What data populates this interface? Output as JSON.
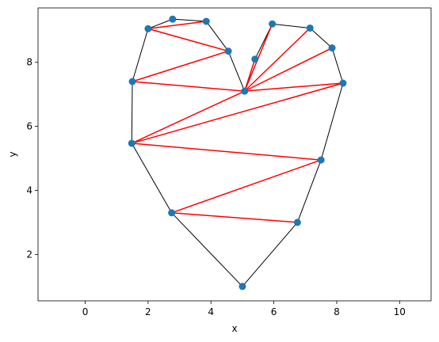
{
  "chart_data": {
    "type": "scatter",
    "title": "",
    "xlabel": "x",
    "ylabel": "y",
    "xlim": [
      -1.5,
      11.0
    ],
    "ylim": [
      0.55,
      9.7
    ],
    "xticks": [
      0,
      2,
      4,
      6,
      8,
      10
    ],
    "yticks": [
      2,
      4,
      6,
      8
    ],
    "grid": false,
    "points": [
      {
        "x": 5.0,
        "y": 1.0
      },
      {
        "x": 6.75,
        "y": 3.0
      },
      {
        "x": 7.5,
        "y": 4.95
      },
      {
        "x": 8.2,
        "y": 7.35
      },
      {
        "x": 7.85,
        "y": 8.45
      },
      {
        "x": 7.15,
        "y": 9.07
      },
      {
        "x": 5.95,
        "y": 9.2
      },
      {
        "x": 5.4,
        "y": 8.1
      },
      {
        "x": 5.07,
        "y": 7.1
      },
      {
        "x": 4.55,
        "y": 8.35
      },
      {
        "x": 3.85,
        "y": 9.28
      },
      {
        "x": 2.78,
        "y": 9.35
      },
      {
        "x": 2.0,
        "y": 9.05
      },
      {
        "x": 1.5,
        "y": 7.4
      },
      {
        "x": 1.48,
        "y": 5.47
      },
      {
        "x": 2.75,
        "y": 3.3
      }
    ],
    "outline": [
      0,
      1,
      2,
      3,
      4,
      5,
      6,
      7,
      8,
      9,
      10,
      11,
      12,
      13,
      14,
      15,
      0
    ],
    "diagonals": [
      [
        10,
        12
      ],
      [
        12,
        9
      ],
      [
        9,
        13
      ],
      [
        13,
        8
      ],
      [
        8,
        7
      ],
      [
        8,
        6
      ],
      [
        8,
        5
      ],
      [
        8,
        4
      ],
      [
        8,
        3
      ],
      [
        8,
        14
      ],
      [
        14,
        3
      ],
      [
        14,
        2
      ],
      [
        2,
        15
      ],
      [
        15,
        1
      ]
    ],
    "colors": {
      "marker": "#1f77b4",
      "outline": "#000000",
      "diagonal": "#ff0000",
      "axes": "#000000"
    }
  }
}
